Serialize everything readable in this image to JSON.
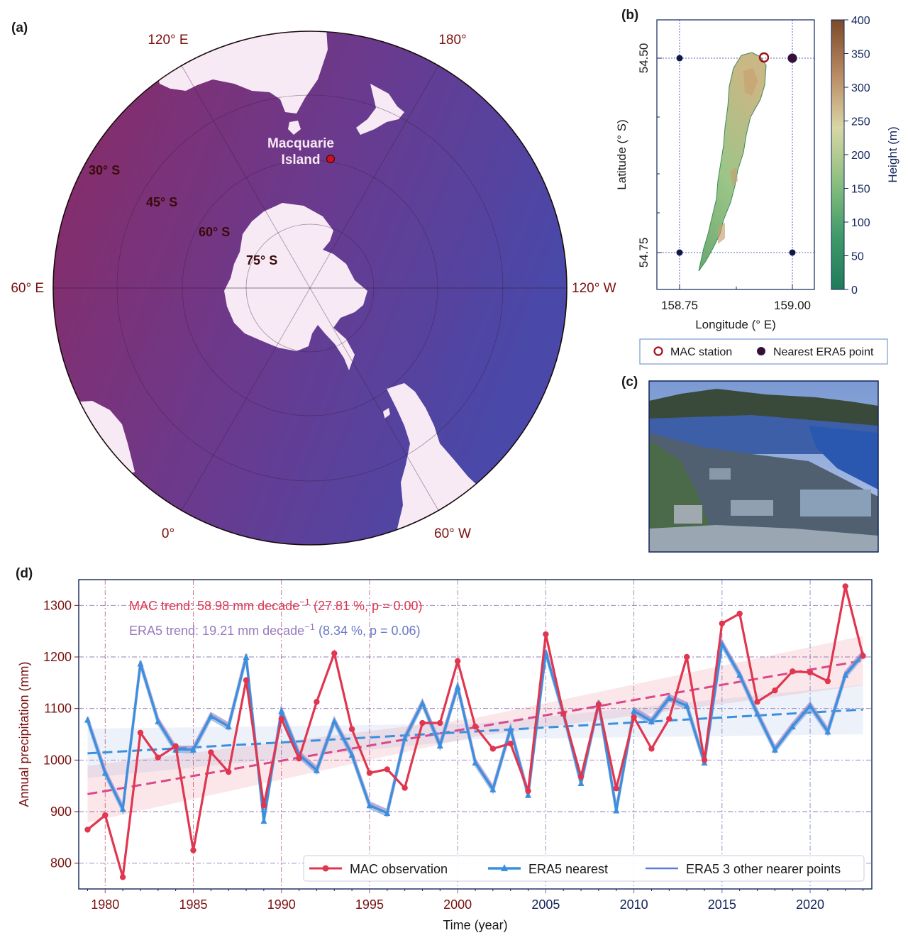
{
  "panel_labels": {
    "a": "(a)",
    "b": "(b)",
    "c": "(c)",
    "d": "(d)"
  },
  "map_a": {
    "lon_labels": [
      "120° E",
      "180°",
      "120° W",
      "60° W",
      "0°",
      "60° E"
    ],
    "lat_labels": [
      "30° S",
      "45° S",
      "60° S",
      "75° S"
    ],
    "site_name_line1": "Macquarie",
    "site_name_line2": "Island",
    "colors": {
      "ocean_left": "#8c2a62",
      "ocean_right": "#4a48a8",
      "land": "#f7eaf4",
      "site": "#d01020"
    }
  },
  "map_b": {
    "xlabel": "Longitude (° E)",
    "ylabel": "Latitude (° S)",
    "xticks": [
      "158.75",
      "159.00"
    ],
    "yticks": [
      "54.50",
      "54.75"
    ],
    "colorbar_label": "Height (m)",
    "colorbar_ticks": [
      0,
      50,
      100,
      150,
      200,
      250,
      300,
      350,
      400
    ],
    "legend": {
      "station": "MAC station",
      "era5": "Nearest ERA5 point"
    }
  },
  "chart_data": {
    "type": "line",
    "xlabel": "Time (year)",
    "ylabel": "Annual precipitation (mm)",
    "xlim": [
      1978.5,
      2023.5
    ],
    "ylim": [
      750,
      1350
    ],
    "xticks": [
      1980,
      1985,
      1990,
      1995,
      2000,
      2005,
      2010,
      2015,
      2020
    ],
    "yticks": [
      800,
      900,
      1000,
      1100,
      1200,
      1300
    ],
    "grid": true,
    "legend_position": "lower-right",
    "annotations": {
      "mac_prefix": "MAC  trend:  58.98 mm decade",
      "mac_suffix": " (27.81 %, p = 0.00)",
      "era5_prefix": "ERA5 trend: 19.21 mm decade",
      "era5_suffix": " (8.34 %, p = 0.06)",
      "exponent": "−1"
    },
    "x": [
      1979,
      1980,
      1981,
      1982,
      1983,
      1984,
      1985,
      1986,
      1987,
      1988,
      1989,
      1990,
      1991,
      1992,
      1993,
      1994,
      1995,
      1996,
      1997,
      1998,
      1999,
      2000,
      2001,
      2002,
      2003,
      2004,
      2005,
      2006,
      2007,
      2008,
      2009,
      2010,
      2011,
      2012,
      2013,
      2014,
      2015,
      2016,
      2017,
      2018,
      2019,
      2020,
      2021,
      2022,
      2023
    ],
    "series": [
      {
        "name": "MAC observation",
        "color": "#e0364f",
        "values": [
          865,
          893,
          773,
          1053,
          1005,
          1027,
          825,
          1015,
          977,
          1155,
          912,
          1080,
          1003,
          1113,
          1207,
          1060,
          975,
          982,
          946,
          1072,
          1072,
          1192,
          1065,
          1022,
          1032,
          940,
          1244,
          1090,
          968,
          1108,
          945,
          1083,
          1022,
          1080,
          1200,
          1000,
          1265,
          1284,
          1113,
          1135,
          1172,
          1170,
          1153,
          1337,
          1202
        ]
      },
      {
        "name": "ERA5 nearest",
        "color": "#3a8fde",
        "values": [
          1078,
          975,
          905,
          1187,
          1075,
          1020,
          1020,
          1085,
          1065,
          1200,
          882,
          1095,
          1010,
          980,
          1075,
          1010,
          912,
          897,
          1042,
          1110,
          1028,
          1142,
          995,
          943,
          1060,
          932,
          1208,
          1090,
          955,
          1110,
          902,
          1095,
          1075,
          1120,
          1105,
          995,
          1225,
          1165,
          1090,
          1020,
          1065,
          1105,
          1055,
          1165,
          1205
        ]
      }
    ],
    "trend_mac": {
      "start": 934,
      "end": 1193,
      "color": "#d84a8a"
    },
    "trend_era5": {
      "start": 1013,
      "end": 1098,
      "color": "#3a8fde"
    },
    "legend": {
      "mac": "MAC observation",
      "era5_nearest": "ERA5 nearest",
      "era5_others": "ERA5 3 other nearer points"
    }
  }
}
